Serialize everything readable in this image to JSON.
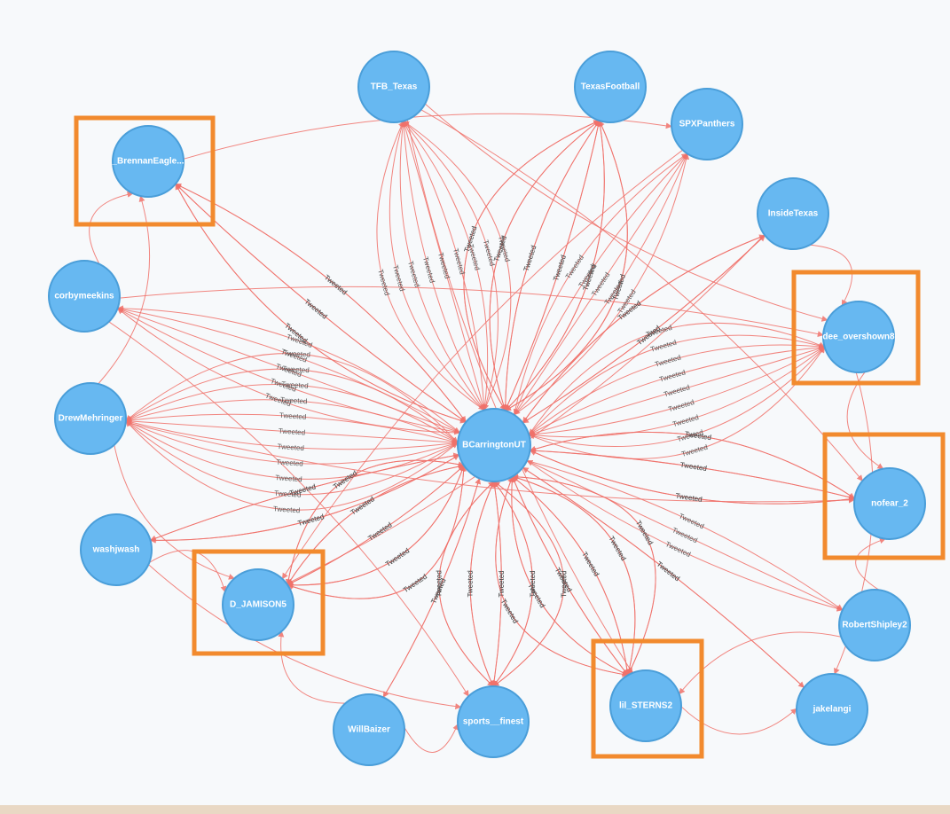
{
  "graph": {
    "center": "BCarringtonUT",
    "edge_label": "Tweeted",
    "colors": {
      "node_fill": "#67b8f1",
      "node_stroke": "#4a9ed9",
      "edge": "#f0716a",
      "highlight": "#f28a2e"
    },
    "nodes": [
      {
        "id": "center",
        "label": "BCarringtonUT"
      },
      {
        "id": "tfb",
        "label": "TFB_Texas"
      },
      {
        "id": "texasfootball",
        "label": "TexasFootball"
      },
      {
        "id": "spx",
        "label": "SPXPanthers"
      },
      {
        "id": "brennan",
        "label": "_BrennanEagle..."
      },
      {
        "id": "insidetexas",
        "label": "InsideTexas"
      },
      {
        "id": "corby",
        "label": "corbymeekins"
      },
      {
        "id": "dee",
        "label": "dee_overshown8"
      },
      {
        "id": "drew",
        "label": "DrewMehringer"
      },
      {
        "id": "nofear",
        "label": "nofear_2"
      },
      {
        "id": "washj",
        "label": "washjwash"
      },
      {
        "id": "jamison",
        "label": "D_JAMISON5"
      },
      {
        "id": "robert",
        "label": "RobertShipley2"
      },
      {
        "id": "jakelangi",
        "label": "jakelangi"
      },
      {
        "id": "willbaizer",
        "label": "WillBaizer"
      },
      {
        "id": "sports",
        "label": "sports__finest"
      },
      {
        "id": "lilsterns",
        "label": "lil_STERNS2"
      }
    ],
    "highlighted": [
      "brennan",
      "dee",
      "nofear",
      "jamison",
      "lilsterns"
    ]
  }
}
